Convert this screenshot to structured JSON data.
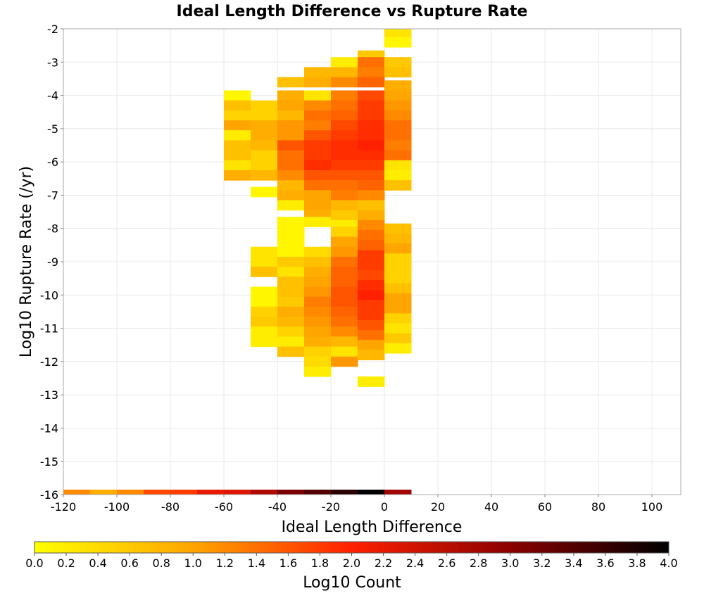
{
  "chart_data": {
    "type": "heatmap",
    "title": "Ideal Length Difference vs Rupture Rate",
    "xlabel": "Ideal Length Difference",
    "ylabel": "Log10 Rupture Rate (/yr)",
    "xlim": [
      -120,
      110
    ],
    "ylim": [
      -16,
      -2
    ],
    "x_ticks": [
      "-120",
      "-100",
      "-80",
      "-60",
      "-40",
      "-20",
      "0",
      "20",
      "40",
      "60",
      "80",
      "100"
    ],
    "y_ticks": [
      "-2",
      "-3",
      "-4",
      "-5",
      "-6",
      "-7",
      "-8",
      "-9",
      "-10",
      "-11",
      "-12",
      "-13",
      "-14",
      "-15",
      "-16"
    ],
    "bin_width_x": 10,
    "bin_height_y": 0.3,
    "colorbar": {
      "label": "Log10 Count",
      "range": [
        0.0,
        4.0
      ],
      "ticks": [
        "0.0",
        "0.2",
        "0.4",
        "0.6",
        "0.8",
        "1.0",
        "1.2",
        "1.4",
        "1.6",
        "1.8",
        "2.0",
        "2.2",
        "2.4",
        "2.6",
        "2.8",
        "3.0",
        "3.2",
        "3.4",
        "3.6",
        "3.8",
        "4.0"
      ],
      "colors": [
        "#ffff00",
        "#ffa500",
        "#ff2000",
        "#8b0000",
        "#000000"
      ]
    },
    "columns": [
      {
        "x": -120,
        "cells": [
          [
            -16.0,
            1.2
          ]
        ]
      },
      {
        "x": -110,
        "cells": [
          [
            -16.0,
            0.9
          ]
        ]
      },
      {
        "x": -100,
        "cells": [
          [
            -16.0,
            1.2
          ]
        ]
      },
      {
        "x": -90,
        "cells": [
          [
            -16.0,
            1.7
          ]
        ]
      },
      {
        "x": -80,
        "cells": [
          [
            -16.0,
            1.8
          ]
        ]
      },
      {
        "x": -70,
        "cells": [
          [
            -16.0,
            2.2
          ]
        ]
      },
      {
        "x": -60,
        "cells": [
          [
            -4.0,
            0.1
          ],
          [
            -4.3,
            0.7
          ],
          [
            -4.6,
            0.5
          ],
          [
            -4.9,
            1.0
          ],
          [
            -5.2,
            0.2
          ],
          [
            -5.5,
            0.7
          ],
          [
            -5.8,
            0.7
          ],
          [
            -6.1,
            0.3
          ],
          [
            -6.4,
            0.9
          ],
          [
            -16.0,
            2.3
          ]
        ]
      },
      {
        "x": -50,
        "cells": [
          [
            -4.3,
            0.5
          ],
          [
            -4.6,
            0.5
          ],
          [
            -4.9,
            0.9
          ],
          [
            -5.2,
            0.9
          ],
          [
            -5.5,
            0.8
          ],
          [
            -5.8,
            0.5
          ],
          [
            -6.1,
            0.5
          ],
          [
            -6.4,
            0.8
          ],
          [
            -6.9,
            0.1
          ],
          [
            -8.7,
            0.3
          ],
          [
            -9.0,
            0.3
          ],
          [
            -9.3,
            0.7
          ],
          [
            -9.9,
            0.1
          ],
          [
            -10.2,
            0.1
          ],
          [
            -10.5,
            0.5
          ],
          [
            -10.8,
            0.6
          ],
          [
            -11.1,
            0.2
          ],
          [
            -11.4,
            0.2
          ],
          [
            -16.0,
            2.7
          ]
        ]
      },
      {
        "x": -40,
        "cells": [
          [
            -3.6,
            0.7
          ],
          [
            -4.0,
            0.9
          ],
          [
            -4.3,
            1.0
          ],
          [
            -4.6,
            0.8
          ],
          [
            -4.9,
            1.1
          ],
          [
            -5.2,
            1.1
          ],
          [
            -5.5,
            1.6
          ],
          [
            -5.8,
            1.4
          ],
          [
            -6.1,
            1.4
          ],
          [
            -6.4,
            1.2
          ],
          [
            -6.7,
            0.8
          ],
          [
            -7.0,
            0.9
          ],
          [
            -7.3,
            0.2
          ],
          [
            -7.8,
            0.1
          ],
          [
            -8.1,
            0.1
          ],
          [
            -8.4,
            0.1
          ],
          [
            -8.7,
            0.1
          ],
          [
            -9.0,
            0.6
          ],
          [
            -9.3,
            0.3
          ],
          [
            -9.6,
            0.7
          ],
          [
            -9.9,
            0.7
          ],
          [
            -10.2,
            0.6
          ],
          [
            -10.5,
            0.9
          ],
          [
            -10.8,
            0.8
          ],
          [
            -11.1,
            0.5
          ],
          [
            -11.4,
            0.2
          ],
          [
            -11.7,
            0.7
          ],
          [
            -16.0,
            3.1
          ]
        ]
      },
      {
        "x": -30,
        "cells": [
          [
            -3.3,
            0.8
          ],
          [
            -3.6,
            0.9
          ],
          [
            -4.0,
            0.3
          ],
          [
            -4.3,
            1.2
          ],
          [
            -4.6,
            1.4
          ],
          [
            -4.9,
            1.3
          ],
          [
            -5.2,
            1.6
          ],
          [
            -5.5,
            1.8
          ],
          [
            -5.8,
            1.8
          ],
          [
            -6.1,
            1.9
          ],
          [
            -6.4,
            1.6
          ],
          [
            -6.7,
            1.4
          ],
          [
            -7.0,
            1.0
          ],
          [
            -7.3,
            1.0
          ],
          [
            -7.6,
            0.9
          ],
          [
            -7.8,
            0.2
          ],
          [
            -8.7,
            0.4
          ],
          [
            -9.0,
            0.7
          ],
          [
            -9.3,
            0.9
          ],
          [
            -9.6,
            1.0
          ],
          [
            -9.9,
            1.1
          ],
          [
            -10.2,
            1.3
          ],
          [
            -10.5,
            1.2
          ],
          [
            -10.8,
            1.1
          ],
          [
            -11.1,
            1.0
          ],
          [
            -11.4,
            0.9
          ],
          [
            -11.7,
            0.5
          ],
          [
            -12.0,
            0.4
          ],
          [
            -12.3,
            0.2
          ],
          [
            -16.0,
            3.4
          ]
        ]
      },
      {
        "x": -20,
        "cells": [
          [
            -3.0,
            0.2
          ],
          [
            -3.3,
            0.8
          ],
          [
            -3.6,
            1.2
          ],
          [
            -4.0,
            1.3
          ],
          [
            -4.3,
            1.4
          ],
          [
            -4.6,
            1.5
          ],
          [
            -4.9,
            1.7
          ],
          [
            -5.2,
            1.8
          ],
          [
            -5.5,
            1.9
          ],
          [
            -5.8,
            1.9
          ],
          [
            -6.1,
            1.8
          ],
          [
            -6.4,
            1.6
          ],
          [
            -6.7,
            1.4
          ],
          [
            -7.0,
            1.3
          ],
          [
            -7.3,
            0.8
          ],
          [
            -7.6,
            0.6
          ],
          [
            -7.9,
            0.2
          ],
          [
            -8.1,
            0.5
          ],
          [
            -8.4,
            1.0
          ],
          [
            -8.7,
            1.1
          ],
          [
            -9.0,
            1.4
          ],
          [
            -9.3,
            1.5
          ],
          [
            -9.6,
            1.5
          ],
          [
            -9.9,
            1.6
          ],
          [
            -10.2,
            1.6
          ],
          [
            -10.5,
            1.5
          ],
          [
            -10.8,
            1.4
          ],
          [
            -11.1,
            1.2
          ],
          [
            -11.4,
            0.8
          ],
          [
            -11.7,
            0.3
          ],
          [
            -12.0,
            1.1
          ],
          [
            -16.0,
            3.7
          ]
        ]
      },
      {
        "x": -10,
        "cells": [
          [
            -2.8,
            0.6
          ],
          [
            -3.0,
            1.4
          ],
          [
            -3.3,
            1.3
          ],
          [
            -3.6,
            1.5
          ],
          [
            -4.0,
            1.7
          ],
          [
            -4.3,
            1.8
          ],
          [
            -4.6,
            1.8
          ],
          [
            -4.9,
            1.9
          ],
          [
            -5.2,
            1.9
          ],
          [
            -5.5,
            2.0
          ],
          [
            -5.8,
            1.9
          ],
          [
            -6.1,
            1.8
          ],
          [
            -6.4,
            1.6
          ],
          [
            -6.7,
            1.5
          ],
          [
            -7.0,
            1.2
          ],
          [
            -7.3,
            0.7
          ],
          [
            -7.6,
            0.9
          ],
          [
            -7.9,
            1.2
          ],
          [
            -8.2,
            1.4
          ],
          [
            -8.5,
            1.5
          ],
          [
            -8.8,
            1.8
          ],
          [
            -9.1,
            1.8
          ],
          [
            -9.4,
            1.7
          ],
          [
            -9.7,
            1.9
          ],
          [
            -10.0,
            2.0
          ],
          [
            -10.3,
            1.8
          ],
          [
            -10.6,
            1.8
          ],
          [
            -10.9,
            1.6
          ],
          [
            -11.2,
            1.4
          ],
          [
            -11.5,
            1.0
          ],
          [
            -11.8,
            0.8
          ],
          [
            -12.6,
            0.2
          ],
          [
            -16.0,
            4.0
          ]
        ]
      },
      {
        "x": 0,
        "cells": [
          [
            -2.1,
            0.3
          ],
          [
            -2.4,
            0.1
          ],
          [
            -3.0,
            0.6
          ],
          [
            -3.3,
            0.7
          ],
          [
            -3.7,
            0.9
          ],
          [
            -4.0,
            1.0
          ],
          [
            -4.3,
            1.1
          ],
          [
            -4.6,
            1.2
          ],
          [
            -4.9,
            1.4
          ],
          [
            -5.2,
            1.4
          ],
          [
            -5.5,
            1.3
          ],
          [
            -5.8,
            1.4
          ],
          [
            -6.1,
            0.3
          ],
          [
            -6.4,
            0.2
          ],
          [
            -6.7,
            0.7
          ],
          [
            -8.0,
            0.7
          ],
          [
            -8.3,
            0.8
          ],
          [
            -8.6,
            1.0
          ],
          [
            -8.9,
            0.5
          ],
          [
            -9.2,
            0.5
          ],
          [
            -9.5,
            0.5
          ],
          [
            -9.8,
            0.7
          ],
          [
            -10.1,
            1.0
          ],
          [
            -10.4,
            1.0
          ],
          [
            -10.7,
            0.5
          ],
          [
            -11.0,
            0.3
          ],
          [
            -11.3,
            0.6
          ],
          [
            -11.6,
            0.2
          ],
          [
            -16.0,
            2.8
          ]
        ]
      }
    ]
  }
}
